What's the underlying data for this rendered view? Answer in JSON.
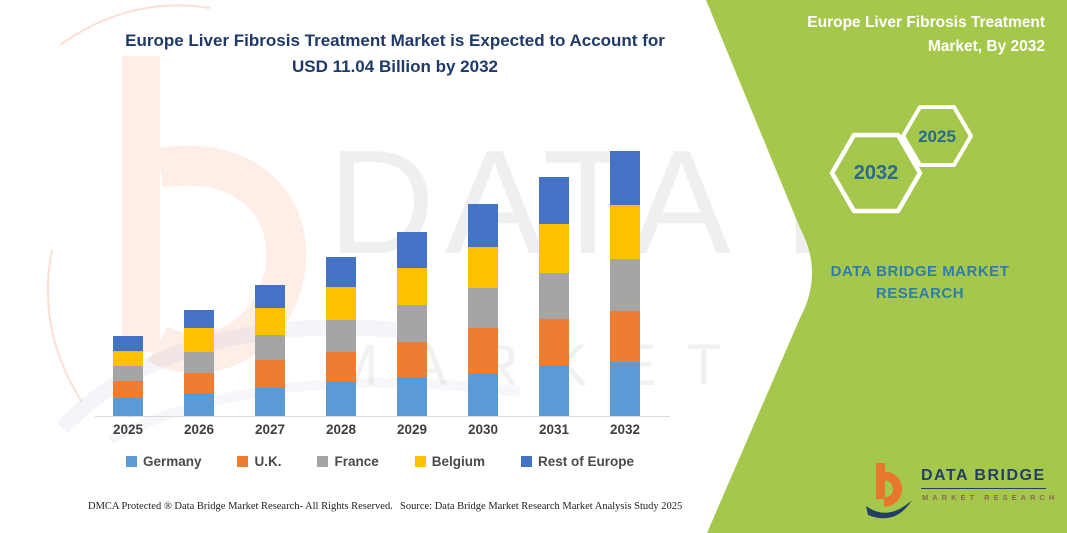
{
  "page": {
    "title_line1": "Europe Liver Fibrosis Treatment Market is Expected to Account for",
    "title_line2": "USD 11.04 Billion by 2032"
  },
  "side_panel": {
    "bg_color": "#a5c84c",
    "heading_line1": "Europe Liver Fibrosis Treatment",
    "heading_line2": "Market, By 2032",
    "hexagon_labels": [
      "2032",
      "2025"
    ],
    "brand_line1": "DATA BRIDGE MARKET",
    "brand_line2": "RESEARCH"
  },
  "chart_data": {
    "type": "bar",
    "stacked": true,
    "title": "Europe Liver Fibrosis Treatment Market is Expected to Account for USD 11.04 Billion by 2032",
    "unit": "USD Billion",
    "categories": [
      "2025",
      "2026",
      "2027",
      "2028",
      "2029",
      "2030",
      "2031",
      "2032"
    ],
    "series": [
      {
        "name": "Germany",
        "color": "#5B9BD5",
        "values": [
          0.74,
          0.94,
          1.15,
          1.42,
          1.63,
          1.77,
          2.09,
          2.23
        ]
      },
      {
        "name": "U.K.",
        "color": "#ED7D31",
        "values": [
          0.74,
          0.84,
          1.18,
          1.25,
          1.46,
          1.88,
          1.95,
          2.16
        ]
      },
      {
        "name": "France",
        "color": "#A5A5A5",
        "values": [
          0.59,
          0.9,
          1.05,
          1.33,
          1.53,
          1.67,
          1.91,
          2.16
        ]
      },
      {
        "name": "Belgium",
        "color": "#FFC000",
        "values": [
          0.63,
          0.98,
          1.12,
          1.39,
          1.53,
          1.71,
          2.04,
          2.26
        ]
      },
      {
        "name": "Rest of Europe",
        "color": "#4472C4",
        "values": [
          0.63,
          0.77,
          0.97,
          1.25,
          1.53,
          1.8,
          1.98,
          2.23
        ]
      }
    ],
    "totals": [
      3.33,
      4.43,
      5.47,
      6.64,
      7.68,
      8.83,
      9.97,
      11.04
    ],
    "ylim": [
      0,
      11.5
    ],
    "y_axis_visible": false,
    "gridlines": false,
    "legend_position": "bottom"
  },
  "watermark": {
    "line1": "DATA BRIDGE",
    "line2": "MARKET RESEARCH"
  },
  "logo": {
    "name": "DATA BRIDGE",
    "subtitle": "MARKET RESEARCH"
  },
  "footer": {
    "left": "DMCA Protected ® Data Bridge Market Research-  All Rights Reserved.",
    "source": "Source: Data Bridge Market Research  Market Analysis Study 2025"
  }
}
